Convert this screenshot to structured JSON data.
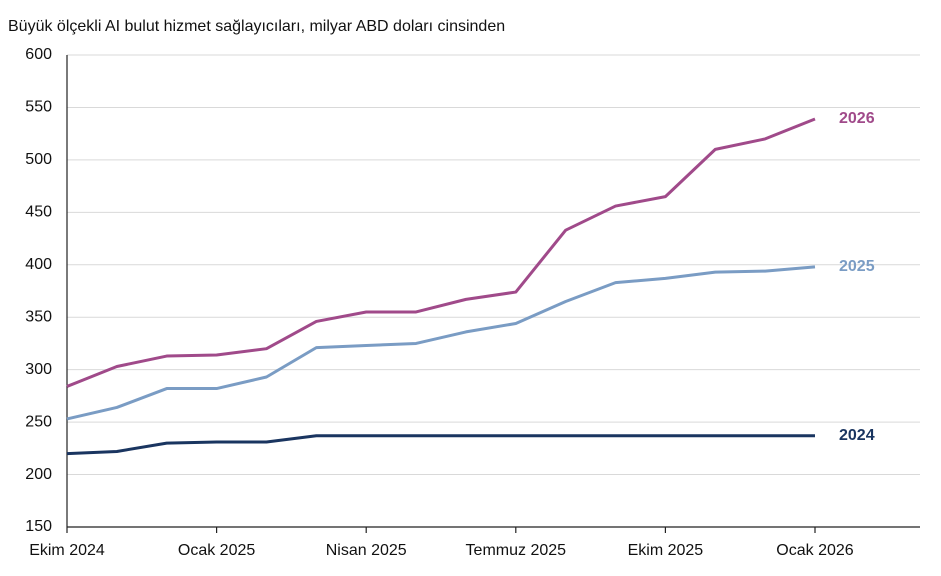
{
  "chart_data": {
    "type": "line",
    "title": "Büyük ölçekli AI bulut hizmet sağlayıcıları, milyar ABD doları cinsinden",
    "categories": [
      "Ekim 2024",
      null,
      null,
      "Ocak 2025",
      null,
      null,
      "Nisan 2025",
      null,
      null,
      "Temmuz 2025",
      null,
      null,
      "Ekim 2025",
      null,
      null,
      "Ocak 2026"
    ],
    "series": [
      {
        "name": "2026",
        "color": "#a04a8a",
        "values": [
          284,
          303,
          313,
          314,
          320,
          346,
          355,
          355,
          367,
          374,
          433,
          456,
          465,
          510,
          520,
          539
        ]
      },
      {
        "name": "2025",
        "color": "#7a9cc4",
        "values": [
          253,
          264,
          282,
          282,
          293,
          321,
          323,
          325,
          336,
          344,
          365,
          383,
          387,
          393,
          394,
          398
        ]
      },
      {
        "name": "2024",
        "color": "#1a3560",
        "values": [
          220,
          222,
          230,
          231,
          231,
          237,
          237,
          237,
          237,
          237,
          237,
          237,
          237,
          237,
          237,
          237
        ]
      }
    ],
    "ylim": [
      150,
      600
    ],
    "yticks": [
      150,
      200,
      250,
      300,
      350,
      400,
      450,
      500,
      550,
      600
    ],
    "grid": true
  }
}
